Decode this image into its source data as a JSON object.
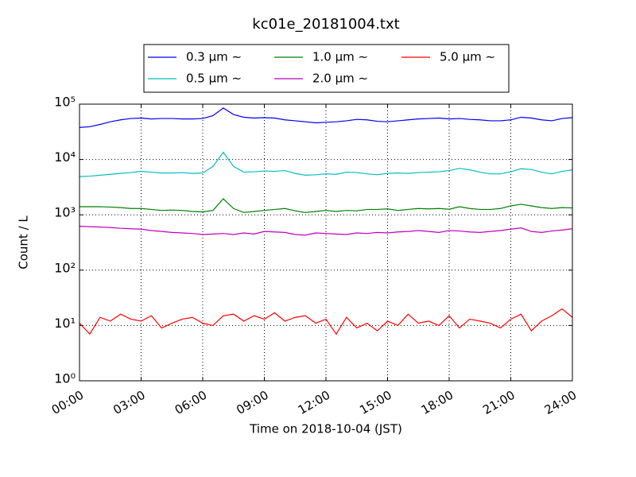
{
  "chart_data": {
    "type": "line",
    "title": "kc01e_20181004.txt",
    "x_label": "Time on 2018-10-04 (JST)",
    "y_label": "Count / L",
    "yscale": "log",
    "grid": true,
    "x": [
      0,
      0.5,
      1,
      1.5,
      2,
      2.5,
      3,
      3.5,
      4,
      4.5,
      5,
      5.5,
      6,
      6.5,
      7,
      7.5,
      8,
      8.5,
      9,
      9.5,
      10,
      10.5,
      11,
      11.5,
      12,
      12.5,
      13,
      13.5,
      14,
      14.5,
      15,
      15.5,
      16,
      16.5,
      17,
      17.5,
      18,
      18.5,
      19,
      19.5,
      20,
      20.5,
      21,
      21.5,
      22,
      22.5,
      23,
      23.5,
      24
    ],
    "xlim": [
      0,
      24
    ],
    "xticks": [
      {
        "value": 0,
        "label": "00:00"
      },
      {
        "value": 3,
        "label": "03:00"
      },
      {
        "value": 6,
        "label": "06:00"
      },
      {
        "value": 9,
        "label": "09:00"
      },
      {
        "value": 12,
        "label": "12:00"
      },
      {
        "value": 15,
        "label": "15:00"
      },
      {
        "value": 18,
        "label": "18:00"
      },
      {
        "value": 21,
        "label": "21:00"
      },
      {
        "value": 24,
        "label": "24:00"
      }
    ],
    "ylim": [
      1,
      100000
    ],
    "yticks": [
      {
        "value": 1,
        "label": "10⁰"
      },
      {
        "value": 10,
        "label": "10¹"
      },
      {
        "value": 100,
        "label": "10²"
      },
      {
        "value": 1000,
        "label": "10³"
      },
      {
        "value": 10000,
        "label": "10⁴"
      },
      {
        "value": 100000,
        "label": "10⁵"
      }
    ],
    "series": [
      {
        "name": "0.3 μm ∼",
        "color": "#0000ff",
        "values": [
          38000,
          39000,
          43000,
          48000,
          52000,
          55000,
          56000,
          54000,
          55000,
          55000,
          54000,
          54000,
          55000,
          62000,
          85000,
          65000,
          58000,
          56000,
          57000,
          56000,
          52000,
          50000,
          48000,
          46000,
          47000,
          48000,
          50000,
          53000,
          52000,
          49000,
          48000,
          50000,
          52000,
          54000,
          55000,
          56000,
          54000,
          55000,
          53000,
          52000,
          50000,
          50000,
          52000,
          58000,
          56000,
          52000,
          50000,
          55000,
          57000
        ]
      },
      {
        "name": "0.5 μm ∼",
        "color": "#00bfbf",
        "values": [
          4900,
          5000,
          5200,
          5400,
          5600,
          5800,
          6100,
          5900,
          5700,
          5700,
          5800,
          5600,
          5700,
          7500,
          13500,
          7500,
          5900,
          6000,
          6200,
          6100,
          6300,
          5600,
          5200,
          5300,
          5500,
          5400,
          5900,
          5800,
          5500,
          5300,
          5600,
          5700,
          5600,
          5800,
          5900,
          6000,
          6300,
          6900,
          6500,
          5900,
          5500,
          5500,
          6000,
          6800,
          6600,
          5900,
          5500,
          6100,
          6500
        ]
      },
      {
        "name": "1.0 μm ∼",
        "color": "#008000",
        "values": [
          1400,
          1400,
          1400,
          1380,
          1350,
          1300,
          1300,
          1250,
          1200,
          1220,
          1200,
          1150,
          1130,
          1200,
          1950,
          1300,
          1100,
          1150,
          1200,
          1250,
          1300,
          1180,
          1100,
          1150,
          1200,
          1150,
          1200,
          1180,
          1250,
          1250,
          1280,
          1200,
          1250,
          1300,
          1280,
          1300,
          1260,
          1400,
          1300,
          1250,
          1250,
          1300,
          1450,
          1550,
          1450,
          1350,
          1300,
          1350,
          1330
        ]
      },
      {
        "name": "2.0 μm ∼",
        "color": "#bf00bf",
        "values": [
          620,
          610,
          600,
          590,
          570,
          560,
          550,
          520,
          500,
          480,
          470,
          460,
          440,
          450,
          460,
          440,
          470,
          450,
          500,
          490,
          480,
          440,
          430,
          470,
          460,
          450,
          440,
          470,
          460,
          480,
          470,
          490,
          500,
          520,
          500,
          480,
          520,
          510,
          490,
          480,
          500,
          520,
          550,
          580,
          500,
          480,
          510,
          530,
          560
        ]
      },
      {
        "name": "5.0 μm ∼",
        "color": "#ff0000",
        "values": [
          11,
          7,
          14,
          12,
          16,
          13,
          12,
          15,
          9,
          11,
          13,
          14,
          11,
          10,
          15,
          16,
          12,
          15,
          13,
          17,
          12,
          14,
          15,
          11,
          13,
          7,
          14,
          9,
          11,
          8,
          12,
          10,
          16,
          11,
          12,
          10,
          15,
          9,
          13,
          12,
          11,
          9,
          13,
          16,
          8,
          12,
          15,
          20,
          14
        ]
      }
    ]
  }
}
